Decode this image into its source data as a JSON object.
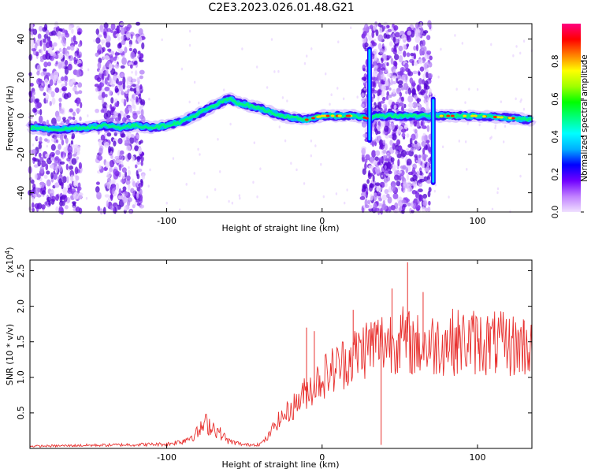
{
  "title": "C2E3.2023.026.01.48.G21",
  "colors": {
    "background": "#ffffff",
    "frame": "#000000",
    "snr_line": "#e8302e",
    "noise_dots": "#8a3cf0"
  },
  "chart_data": [
    {
      "type": "heatmap",
      "xlabel": "Height of straight line (km)",
      "ylabel": "Frequency (Hz)",
      "xlim": [
        -188,
        135
      ],
      "ylim": [
        -50,
        48
      ],
      "xticks": [
        -100,
        0,
        100
      ],
      "yticks": [
        -40,
        -20,
        0,
        20,
        40
      ],
      "colorbar": {
        "label": "Normalized spectral amplitude",
        "range": [
          0,
          1
        ],
        "ticks": [
          "0.0",
          "0.2",
          "0.4",
          "0.6",
          "0.8"
        ],
        "colormap": [
          "#f0e0ff",
          "#c080ff",
          "#7000ff",
          "#0000ff",
          "#00b0ff",
          "#00ffff",
          "#00ff80",
          "#00ff00",
          "#a0ff00",
          "#ffff00",
          "#ff8000",
          "#ff0000",
          "#ff0080"
        ]
      },
      "ridge": {
        "x": [
          -188,
          -170,
          -150,
          -140,
          -130,
          -120,
          -110,
          -100,
          -90,
          -80,
          -70,
          -60,
          -55,
          -50,
          -40,
          -30,
          -20,
          -10,
          0,
          10,
          20,
          28,
          31,
          33,
          70,
          72,
          74,
          80,
          100,
          120,
          135
        ],
        "y": [
          -6,
          -7,
          -6,
          -5,
          -6,
          -5,
          -6,
          -5,
          -3,
          1,
          5,
          9,
          7,
          6,
          4,
          1,
          -1,
          -2,
          0,
          0,
          0,
          -1,
          -2,
          0,
          0,
          1,
          0,
          0,
          0,
          -1,
          -2
        ]
      },
      "noise_bands": [
        [
          -188,
          -155
        ],
        [
          -145,
          -115
        ],
        [
          26,
          70
        ]
      ]
    },
    {
      "type": "line",
      "xlabel": "Height of straight line (km)",
      "ylabel": "SNR (10 * v/v)",
      "y_multiplier": "(x10",
      "y_multiplier_exp": "4",
      "y_multiplier_close": ")",
      "xlim": [
        -188,
        135
      ],
      "ylim": [
        0,
        2.65
      ],
      "xticks": [
        -100,
        0,
        100
      ],
      "yticks": [
        0.5,
        1.0,
        1.5,
        2.0,
        2.5
      ],
      "ytick_labels": [
        "0.5",
        "1.0",
        "1.5",
        "2.0",
        "2.5"
      ],
      "trend": {
        "x": [
          -188,
          -160,
          -130,
          -100,
          -90,
          -80,
          -75,
          -70,
          -60,
          -50,
          -40,
          -35,
          -30,
          -20,
          -10,
          0,
          10,
          20,
          30,
          40,
          50,
          60,
          70,
          80,
          100,
          120,
          135
        ],
        "y": [
          0.03,
          0.04,
          0.05,
          0.06,
          0.1,
          0.22,
          0.35,
          0.3,
          0.1,
          0.05,
          0.06,
          0.15,
          0.35,
          0.55,
          0.8,
          1.0,
          1.15,
          1.3,
          1.45,
          1.5,
          1.55,
          1.45,
          1.45,
          1.5,
          1.5,
          1.45,
          1.45
        ]
      },
      "spikes": [
        {
          "x": 55,
          "y": 2.62
        },
        {
          "x": 38,
          "y": 0.05
        },
        {
          "x": -5,
          "y": 1.65
        },
        {
          "x": 20,
          "y": 1.95
        },
        {
          "x": 45,
          "y": 2.25
        },
        {
          "x": 65,
          "y": 2.2
        },
        {
          "x": -10,
          "y": 1.7
        },
        {
          "x": 100,
          "y": 1.75
        },
        {
          "x": 130,
          "y": 1.8
        }
      ]
    }
  ]
}
